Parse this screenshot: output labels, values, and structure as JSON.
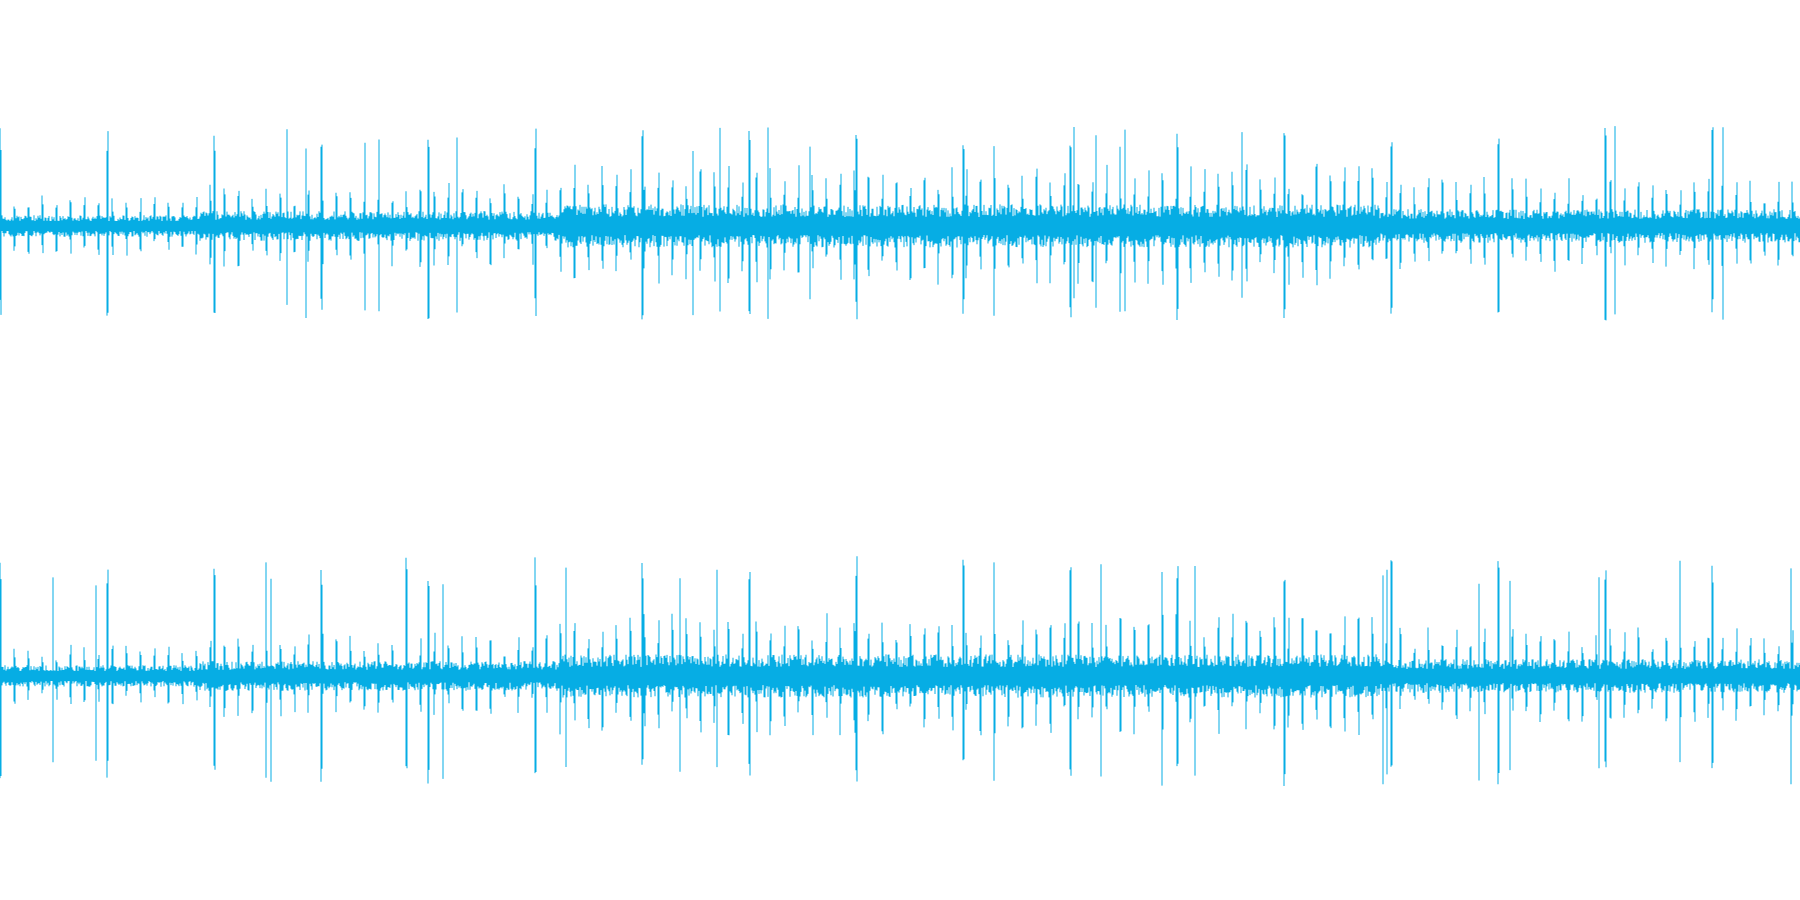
{
  "waveform": {
    "color": "#06ADE4",
    "background": "#FFFFFF",
    "channels": [
      {
        "name": ""
      },
      {
        "name": ""
      }
    ]
  }
}
